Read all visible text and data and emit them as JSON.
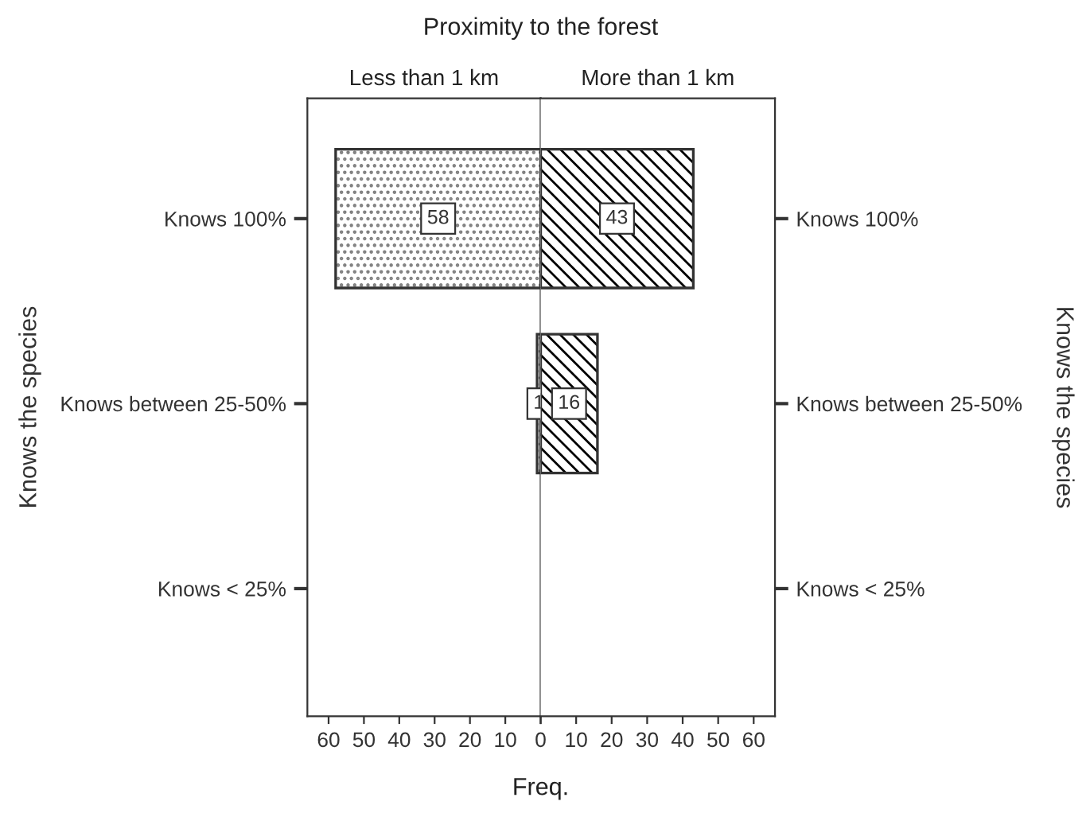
{
  "chart_data": [
    {
      "type": "bar",
      "orientation": "horizontal",
      "title": "Less than 1 km",
      "ylabel": "Knows the species",
      "categories": [
        "Knows 100%",
        "Knows between 25-50%",
        "Knows < 25%"
      ],
      "values": [
        58,
        1,
        null
      ],
      "value_labels": [
        "58",
        "1",
        null
      ],
      "color": "#808080",
      "xlim": [
        66,
        0
      ],
      "xticks": [
        60,
        50,
        40,
        30,
        20,
        10,
        0
      ],
      "annotations": [
        "Proximity to the forest",
        "Freq."
      ]
    },
    {
      "type": "bar",
      "orientation": "horizontal",
      "title": "More than 1 km",
      "ylabel": "Knows the species",
      "categories": [
        "Knows 100%",
        "Knows between 25-50%",
        "Knows < 25%"
      ],
      "values": [
        43,
        16,
        null
      ],
      "value_labels": [
        "43",
        "16",
        null
      ],
      "color": "#000000",
      "xlim": [
        0,
        66
      ],
      "xticks": [
        {
          "value": 0,
          "label": null
        },
        10,
        20,
        30,
        40,
        50,
        60
      ]
    }
  ]
}
